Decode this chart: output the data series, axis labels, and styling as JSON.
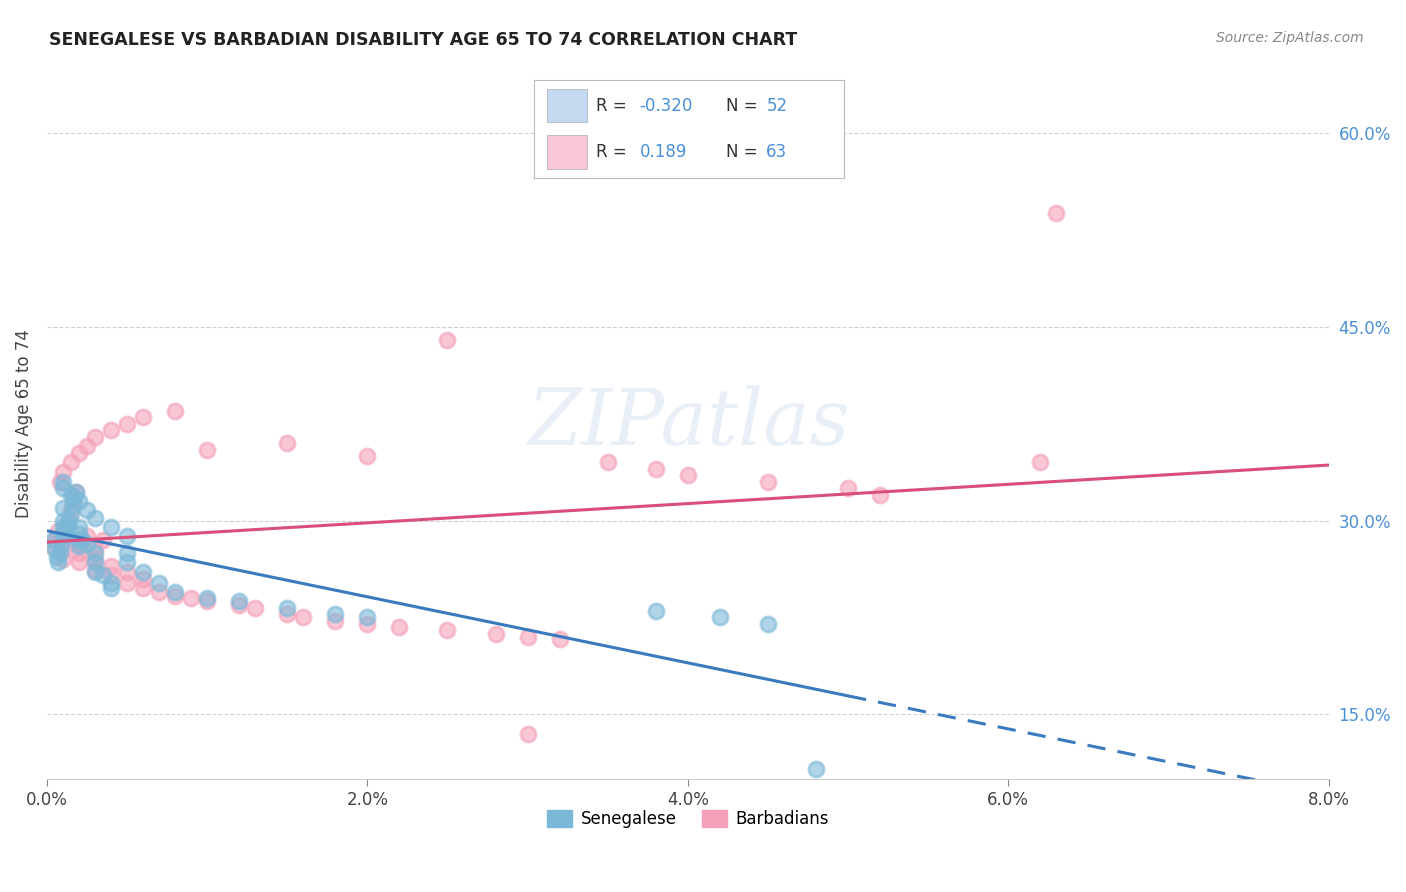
{
  "title": "SENEGALESE VS BARBADIAN DISABILITY AGE 65 TO 74 CORRELATION CHART",
  "source_text": "Source: ZipAtlas.com",
  "ylabel": "Disability Age 65 to 74",
  "xlim": [
    0.0,
    0.08
  ],
  "ylim": [
    0.1,
    0.65
  ],
  "xtick_labels": [
    "0.0%",
    "2.0%",
    "4.0%",
    "6.0%",
    "8.0%"
  ],
  "xtick_values": [
    0.0,
    0.02,
    0.04,
    0.06,
    0.08
  ],
  "ytick_labels": [
    "15.0%",
    "30.0%",
    "45.0%",
    "60.0%"
  ],
  "ytick_values": [
    0.15,
    0.3,
    0.45,
    0.6
  ],
  "watermark": "ZIPatlas",
  "senegalese_scatter_color": "#7bb8d8",
  "barbadian_scatter_color": "#f4a0b8",
  "senegalese_line_color": "#3a7abf",
  "barbadian_line_color": "#d94f7a",
  "grid_color": "#cccccc",
  "background_color": "#ffffff",
  "legend_box_color": "#c5d9f0",
  "legend_box_color2": "#f9c8d8",
  "ytick_color": "#4a90d9",
  "senegalese_x": [
    0.0004,
    0.0005,
    0.0006,
    0.0007,
    0.0008,
    0.0009,
    0.001,
    0.001,
    0.001,
    0.001,
    0.0012,
    0.0012,
    0.0013,
    0.0014,
    0.0015,
    0.0016,
    0.0017,
    0.0018,
    0.002,
    0.002,
    0.002,
    0.002,
    0.0022,
    0.0025,
    0.003,
    0.003,
    0.003,
    0.0035,
    0.004,
    0.004,
    0.005,
    0.005,
    0.006,
    0.007,
    0.008,
    0.01,
    0.012,
    0.015,
    0.018,
    0.02,
    0.001,
    0.001,
    0.0015,
    0.002,
    0.0025,
    0.003,
    0.004,
    0.005,
    0.038,
    0.042,
    0.045,
    0.048
  ],
  "senegalese_y": [
    0.285,
    0.278,
    0.272,
    0.268,
    0.275,
    0.28,
    0.29,
    0.295,
    0.3,
    0.31,
    0.288,
    0.292,
    0.295,
    0.3,
    0.305,
    0.312,
    0.318,
    0.322,
    0.28,
    0.285,
    0.29,
    0.295,
    0.285,
    0.282,
    0.275,
    0.268,
    0.26,
    0.258,
    0.252,
    0.248,
    0.268,
    0.275,
    0.26,
    0.252,
    0.245,
    0.24,
    0.238,
    0.232,
    0.228,
    0.225,
    0.33,
    0.325,
    0.32,
    0.315,
    0.308,
    0.302,
    0.295,
    0.288,
    0.23,
    0.225,
    0.22,
    0.108
  ],
  "barbadian_x": [
    0.0003,
    0.0005,
    0.0007,
    0.001,
    0.001,
    0.001,
    0.0012,
    0.0013,
    0.0015,
    0.0016,
    0.0018,
    0.002,
    0.002,
    0.002,
    0.0025,
    0.003,
    0.003,
    0.003,
    0.0035,
    0.004,
    0.004,
    0.005,
    0.005,
    0.006,
    0.006,
    0.007,
    0.008,
    0.009,
    0.01,
    0.012,
    0.013,
    0.015,
    0.016,
    0.018,
    0.02,
    0.022,
    0.025,
    0.028,
    0.03,
    0.032,
    0.0008,
    0.001,
    0.0015,
    0.002,
    0.0025,
    0.003,
    0.004,
    0.005,
    0.006,
    0.008,
    0.01,
    0.015,
    0.02,
    0.035,
    0.038,
    0.04,
    0.045,
    0.05,
    0.052,
    0.062,
    0.063,
    0.025,
    0.03
  ],
  "barbadian_y": [
    0.28,
    0.285,
    0.292,
    0.27,
    0.278,
    0.285,
    0.295,
    0.3,
    0.308,
    0.315,
    0.322,
    0.268,
    0.275,
    0.282,
    0.288,
    0.262,
    0.27,
    0.278,
    0.285,
    0.258,
    0.265,
    0.252,
    0.26,
    0.248,
    0.255,
    0.245,
    0.242,
    0.24,
    0.238,
    0.235,
    0.232,
    0.228,
    0.225,
    0.222,
    0.22,
    0.218,
    0.215,
    0.212,
    0.21,
    0.208,
    0.33,
    0.338,
    0.345,
    0.352,
    0.358,
    0.365,
    0.37,
    0.375,
    0.38,
    0.385,
    0.355,
    0.36,
    0.35,
    0.345,
    0.34,
    0.335,
    0.33,
    0.325,
    0.32,
    0.345,
    0.538,
    0.44,
    0.135
  ]
}
